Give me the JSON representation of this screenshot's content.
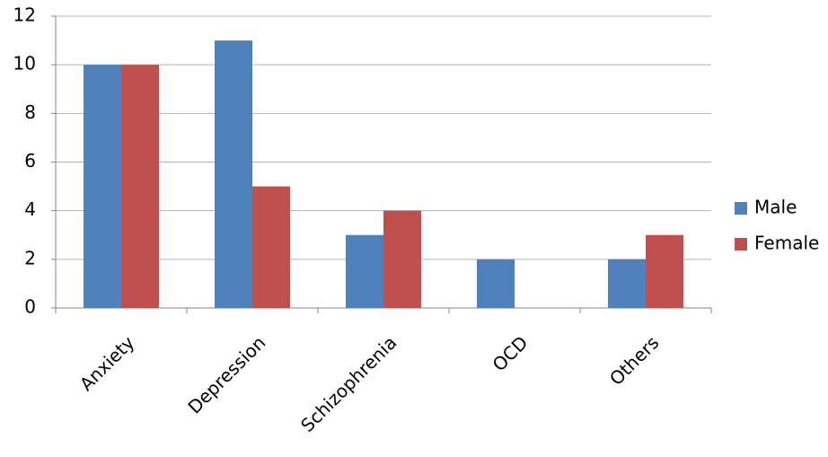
{
  "chart_data": {
    "type": "bar",
    "categories": [
      "Anxiety",
      "Depression",
      "Schizophrenia",
      "OCD",
      "Others"
    ],
    "series": [
      {
        "name": "Male",
        "color": "#4f81bd",
        "values": [
          10,
          11,
          3,
          2,
          2
        ]
      },
      {
        "name": "Female",
        "color": "#c0504d",
        "values": [
          10,
          5,
          4,
          0,
          3
        ]
      }
    ],
    "ylim": [
      0,
      12
    ],
    "yticks": [
      0,
      2,
      4,
      6,
      8,
      10,
      12
    ],
    "grid": true,
    "legend": "right"
  }
}
